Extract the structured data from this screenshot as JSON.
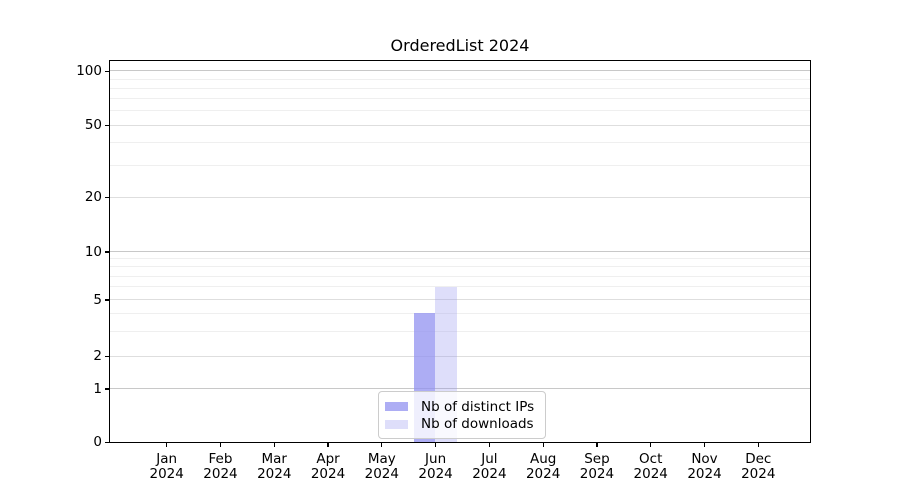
{
  "chart_data": {
    "type": "bar",
    "title": "OrderedList 2024",
    "x_tick_months": [
      "Jan",
      "Feb",
      "Mar",
      "Apr",
      "May",
      "Jun",
      "Jul",
      "Aug",
      "Sep",
      "Oct",
      "Nov",
      "Dec"
    ],
    "x_tick_year": "2024",
    "series": [
      {
        "name": "Nb of distinct IPs",
        "color": "#9191f0",
        "alpha": 0.75,
        "values": [
          0,
          0,
          0,
          0,
          0,
          4,
          0,
          0,
          0,
          0,
          0,
          0
        ]
      },
      {
        "name": "Nb of downloads",
        "color": "#9191f0",
        "alpha": 0.3,
        "values": [
          0,
          0,
          0,
          0,
          0,
          6,
          0,
          0,
          0,
          0,
          0,
          0
        ]
      }
    ],
    "yscale": "symlog",
    "yticks": [
      0,
      1,
      2,
      5,
      10,
      20,
      50,
      100
    ],
    "yticks_minor": [
      3,
      4,
      6,
      7,
      8,
      9,
      30,
      40,
      60,
      70,
      80,
      90
    ],
    "ylim": [
      0,
      112
    ],
    "grid": true,
    "legend_position": "lower center"
  },
  "colors": {
    "grid_decade": "#c8c8c8",
    "grid_major": "#dedede",
    "grid_minor": "#efefef",
    "spine": "#000000",
    "background": "#ffffff",
    "text": "#000000",
    "legend_border": "#cccccc"
  }
}
